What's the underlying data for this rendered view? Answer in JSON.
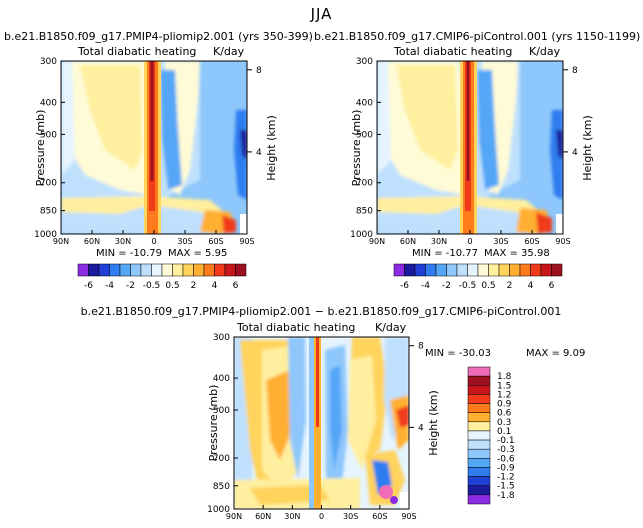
{
  "page": {
    "season": "JJA"
  },
  "colors": {
    "levels": [
      "#8b2be2",
      "#1a1a9c",
      "#1f3fd6",
      "#2f7df0",
      "#54a6f7",
      "#8ec7fb",
      "#bfe0fd",
      "#e6f4ff",
      "#fffbd6",
      "#ffef9e",
      "#ffd35c",
      "#ffb030",
      "#ff7a1a",
      "#f03a1a",
      "#c8161b",
      "#9c1020",
      "#f06cb8"
    ],
    "background": "#ffffff"
  },
  "chart_data": [
    {
      "type": "heatmap",
      "id": "panel-pliomip",
      "title": "b.e21.B1850.f09_g17.PMIP4-pliomip2.001 (yrs 350-399)",
      "left_label": "Total diabatic heating",
      "right_label": "K/day",
      "xlabel": "",
      "ylabel": "Pressure (mb)",
      "ylabel_right": "Height (km)",
      "xticks": [
        "90N",
        "60N",
        "30N",
        "0",
        "30S",
        "60S",
        "90S"
      ],
      "xlim_deg": [
        90,
        -90
      ],
      "yticks": [
        "300",
        "400",
        "500",
        "700",
        "850",
        "1000"
      ],
      "ylim_mb": [
        1000,
        300
      ],
      "right_ticks": [
        "8",
        "4"
      ],
      "stats": {
        "min_label": "MIN = -10.79",
        "max_label": "MAX = 5.95",
        "min": -10.79,
        "max": 5.95
      },
      "colorbar": {
        "labels": [
          "-6",
          "-4",
          "-2",
          "-0.5",
          "0.5",
          "2",
          "4",
          "6"
        ],
        "levels": [
          -6,
          -5,
          -4,
          -3,
          -2,
          -1,
          -0.5,
          0,
          0.5,
          1,
          2,
          3,
          4,
          5,
          6
        ]
      }
    },
    {
      "type": "heatmap",
      "id": "panel-picontrol",
      "title": "b.e21.B1850.f09_g17.CMIP6-piControl.001 (yrs 1150-1199)",
      "left_label": "Total diabatic heating",
      "right_label": "K/day",
      "xlabel": "",
      "ylabel": "Pressure (mb)",
      "ylabel_right": "Height (km)",
      "xticks": [
        "90N",
        "60N",
        "30N",
        "0",
        "30S",
        "60S",
        "90S"
      ],
      "xlim_deg": [
        90,
        -90
      ],
      "yticks": [
        "300",
        "400",
        "500",
        "700",
        "850",
        "1000"
      ],
      "ylim_mb": [
        1000,
        300
      ],
      "right_ticks": [
        "8",
        "4"
      ],
      "stats": {
        "min_label": "MIN = -10.77",
        "max_label": "MAX = 35.98",
        "min": -10.77,
        "max": 35.98
      },
      "colorbar": {
        "labels": [
          "-6",
          "-4",
          "-2",
          "-0.5",
          "0.5",
          "2",
          "4",
          "6"
        ],
        "levels": [
          -6,
          -5,
          -4,
          -3,
          -2,
          -1,
          -0.5,
          0,
          0.5,
          1,
          2,
          3,
          4,
          5,
          6
        ]
      }
    },
    {
      "type": "heatmap",
      "id": "panel-difference",
      "title": "b.e21.B1850.f09_g17.PMIP4-pliomip2.001 − b.e21.B1850.f09_g17.CMIP6-piControl.001",
      "left_label": "Total diabatic heating",
      "right_label": "K/day",
      "xlabel": "",
      "ylabel": "Pressure (mb)",
      "ylabel_right": "Height (km)",
      "xticks": [
        "90N",
        "60N",
        "30N",
        "0",
        "30S",
        "60S",
        "90S"
      ],
      "xlim_deg": [
        90,
        -90
      ],
      "yticks": [
        "300",
        "400",
        "500",
        "700",
        "850",
        "1000"
      ],
      "ylim_mb": [
        1000,
        300
      ],
      "right_ticks": [
        "8",
        "4"
      ],
      "stats": {
        "min_label": "MIN = -30.03",
        "max_label": "MAX = 9.09",
        "min": -30.03,
        "max": 9.09
      },
      "colorbar": {
        "labels": [
          "1.8",
          "1.5",
          "1.2",
          "0.9",
          "0.6",
          "0.3",
          "0.1",
          "-0.1",
          "-0.3",
          "-0.6",
          "-0.9",
          "-1.2",
          "-1.5",
          "-1.8"
        ],
        "levels": [
          1.8,
          1.5,
          1.2,
          0.9,
          0.6,
          0.3,
          0.1,
          -0.1,
          -0.3,
          -0.6,
          -0.9,
          -1.2,
          -1.5,
          -1.8
        ]
      }
    }
  ]
}
